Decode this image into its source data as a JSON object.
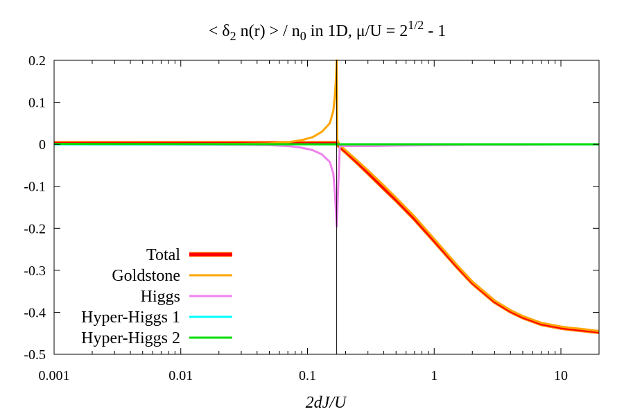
{
  "chart_data": {
    "type": "line",
    "title": {
      "prefix": "< ",
      "delta": "δ",
      "delta_sub": "2",
      "middle": " n(r) > / n",
      "n_sub": "0",
      "after": " in 1D, ",
      "mu": "μ",
      "ratio": "/U = 2",
      "exponent": "1/2",
      "suffix": " - 1"
    },
    "xlabel": "2dJ/U",
    "ylabel": "",
    "xscale": "log",
    "xlim": [
      0.001,
      20
    ],
    "ylim": [
      -0.5,
      0.2
    ],
    "x_ticks": [
      0.001,
      0.01,
      0.1,
      1,
      10
    ],
    "x_tick_labels": [
      "0.001",
      "0.01",
      "0.1",
      "1",
      "10"
    ],
    "y_ticks": [
      0.2,
      0.1,
      0,
      -0.1,
      -0.2,
      -0.3,
      -0.4,
      -0.5
    ],
    "y_tick_labels": [
      "0.2",
      "0.1",
      "0",
      "-0.1",
      "-0.2",
      "-0.3",
      "-0.4",
      "-0.5"
    ],
    "vertical_line_x": 0.17,
    "legend_position": "bottom-left",
    "series": [
      {
        "name": "Total",
        "color": "#ff0000",
        "x": [
          0.001,
          0.01,
          0.05,
          0.1,
          0.15,
          0.168,
          0.17,
          0.18,
          0.2,
          0.25,
          0.3,
          0.4,
          0.5,
          0.7,
          1,
          1.5,
          2,
          3,
          4,
          5,
          7,
          10,
          12,
          15,
          17,
          20
        ],
        "y": [
          0.003,
          0.003,
          0.003,
          0.003,
          0.003,
          0.003,
          0.003,
          -0.006,
          -0.018,
          -0.045,
          -0.068,
          -0.105,
          -0.133,
          -0.178,
          -0.23,
          -0.29,
          -0.33,
          -0.375,
          -0.398,
          -0.412,
          -0.428,
          -0.437,
          -0.44,
          -0.443,
          -0.445,
          -0.447
        ]
      },
      {
        "name": "Goldstone",
        "color": "#ffa500",
        "x": [
          0.001,
          0.01,
          0.03,
          0.05,
          0.07,
          0.09,
          0.11,
          0.13,
          0.15,
          0.16,
          0.165,
          0.168,
          0.17,
          0.172,
          0.18,
          0.2,
          0.25,
          0.3,
          0.4,
          0.5,
          0.7,
          1,
          1.5,
          2,
          3,
          4,
          5,
          7,
          10,
          12,
          15,
          17,
          20
        ],
        "y": [
          0.0,
          0.0005,
          0.001,
          0.002,
          0.005,
          0.01,
          0.017,
          0.03,
          0.05,
          0.08,
          0.12,
          0.16,
          0.2,
          0.01,
          -0.002,
          -0.014,
          -0.04,
          -0.062,
          -0.098,
          -0.127,
          -0.172,
          -0.225,
          -0.286,
          -0.327,
          -0.372,
          -0.395,
          -0.409,
          -0.425,
          -0.434,
          -0.437,
          -0.44,
          -0.442,
          -0.445
        ]
      },
      {
        "name": "Higgs",
        "color": "#ee82ee",
        "x": [
          0.001,
          0.01,
          0.03,
          0.05,
          0.07,
          0.09,
          0.11,
          0.13,
          0.15,
          0.16,
          0.165,
          0.17,
          0.18,
          0.2,
          0.3,
          0.5,
          1,
          2,
          5,
          10,
          20
        ],
        "y": [
          0.0,
          -0.0005,
          -0.001,
          -0.002,
          -0.004,
          -0.008,
          -0.014,
          -0.024,
          -0.042,
          -0.07,
          -0.12,
          -0.195,
          -0.004,
          -0.004,
          -0.004,
          -0.003,
          -0.002,
          -0.001,
          -0.001,
          0.0,
          0.0
        ]
      },
      {
        "name": "Hyper-Higgs 1",
        "color": "#00ffff",
        "x": [
          0.001,
          0.17,
          20
        ],
        "y": [
          0.0,
          0.0,
          0.0
        ]
      },
      {
        "name": "Hyper-Higgs 2",
        "color": "#00dd00",
        "x": [
          0.001,
          0.17,
          20
        ],
        "y": [
          0.001,
          0.0,
          0.0
        ]
      }
    ]
  }
}
